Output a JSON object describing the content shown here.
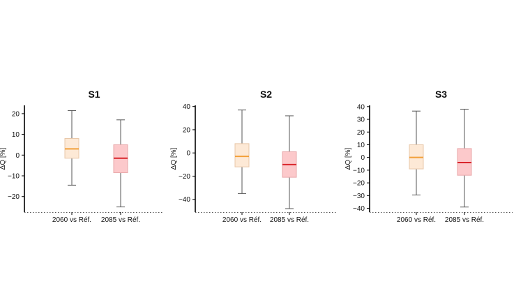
{
  "chart_data": [
    {
      "type": "box",
      "title": "S1",
      "ylabel": "ΔQ [%]",
      "ylim": [
        -27.5,
        24
      ],
      "yticks": [
        -20,
        -10,
        0,
        10,
        20
      ],
      "ytick_labels": [
        "−20",
        "−10",
        "0",
        "10",
        "20"
      ],
      "categories": [
        "2060 vs Réf.",
        "2085 vs Réf."
      ],
      "boxes": [
        {
          "whisker_low": -14.5,
          "q1": -1.5,
          "median": 3,
          "q3": 8,
          "whisker_high": 21.5
        },
        {
          "whisker_low": -25,
          "q1": -8.5,
          "median": -1.5,
          "q3": 5,
          "whisker_high": 17
        }
      ]
    },
    {
      "type": "box",
      "title": "S2",
      "ylabel": "ΔQ [%]",
      "ylim": [
        -51,
        41
      ],
      "yticks": [
        -40,
        -20,
        0,
        20,
        40
      ],
      "ytick_labels": [
        "−40",
        "−20",
        "0",
        "20",
        "40"
      ],
      "categories": [
        "2060 vs Réf.",
        "2085 vs Réf."
      ],
      "boxes": [
        {
          "whisker_low": -35,
          "q1": -12,
          "median": -3,
          "q3": 8,
          "whisker_high": 37
        },
        {
          "whisker_low": -48,
          "q1": -21,
          "median": -10,
          "q3": 1,
          "whisker_high": 32
        }
      ]
    },
    {
      "type": "box",
      "title": "S3",
      "ylabel": "ΔQ [%]",
      "ylim": [
        -43,
        41
      ],
      "yticks": [
        -40,
        -30,
        -20,
        -10,
        0,
        10,
        20,
        30,
        40
      ],
      "ytick_labels": [
        "−40",
        "−30",
        "−20",
        "−10",
        "0",
        "10",
        "20",
        "30",
        "40"
      ],
      "categories": [
        "2060 vs Réf.",
        "2085 vs Réf."
      ],
      "boxes": [
        {
          "whisker_low": -29.5,
          "q1": -9,
          "median": 0,
          "q3": 10,
          "whisker_high": 36.5
        },
        {
          "whisker_low": -39,
          "q1": -14,
          "median": -4,
          "q3": 7,
          "whisker_high": 38
        }
      ]
    }
  ],
  "style": {
    "box_colors": [
      {
        "fill": "#fde9d6",
        "edge": "#e8c7a8",
        "median": "#f2a03a"
      },
      {
        "fill": "#fcc9cb",
        "edge": "#e8a8aa",
        "median": "#d9262c"
      }
    ],
    "whisker_color": "#555555",
    "axis_color": "#000000",
    "baseline_color": "#555555"
  }
}
